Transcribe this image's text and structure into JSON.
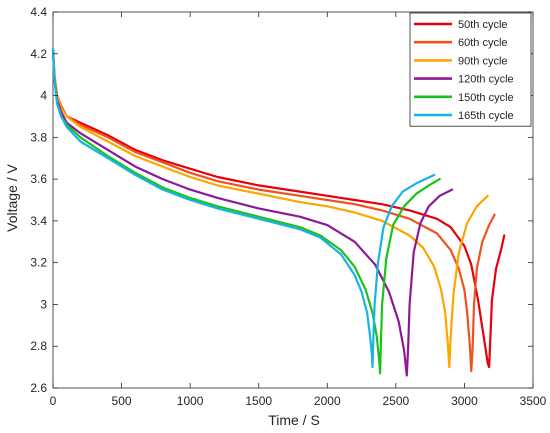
{
  "chart_data": {
    "type": "line",
    "title": "",
    "xlabel": "Time / S",
    "ylabel": "Voltage / V",
    "xlim": [
      0,
      3500
    ],
    "ylim": [
      2.6,
      4.4
    ],
    "xticks": [
      "0",
      "500",
      "1000",
      "1500",
      "2000",
      "2500",
      "3000",
      "3500"
    ],
    "yticks": [
      "2.6",
      "2.8",
      "3",
      "3.2",
      "3.4",
      "3.6",
      "3.8",
      "4",
      "4.2",
      "4.4"
    ],
    "legend_position": "top-right",
    "grid": false,
    "series": [
      {
        "name": "50th cycle",
        "color": "#e8000b",
        "x": [
          0,
          10,
          30,
          60,
          100,
          200,
          400,
          600,
          800,
          1000,
          1200,
          1500,
          1800,
          2000,
          2200,
          2400,
          2600,
          2800,
          2900,
          3000,
          3050,
          3100,
          3140,
          3170,
          3180,
          3190,
          3200,
          3230,
          3270,
          3290
        ],
        "y": [
          4.22,
          4.1,
          4.0,
          3.95,
          3.9,
          3.87,
          3.81,
          3.74,
          3.69,
          3.65,
          3.61,
          3.57,
          3.54,
          3.52,
          3.5,
          3.48,
          3.45,
          3.41,
          3.37,
          3.28,
          3.19,
          3.02,
          2.85,
          2.72,
          2.7,
          2.85,
          3.02,
          3.17,
          3.27,
          3.33
        ]
      },
      {
        "name": "60th cycle",
        "color": "#f0521e",
        "x": [
          0,
          10,
          30,
          60,
          100,
          200,
          400,
          600,
          800,
          1000,
          1200,
          1500,
          1800,
          2000,
          2200,
          2400,
          2600,
          2800,
          2900,
          2960,
          3000,
          3020,
          3040,
          3050,
          3060,
          3070,
          3090,
          3130,
          3180,
          3220
        ],
        "y": [
          4.22,
          4.1,
          4.0,
          3.95,
          3.9,
          3.86,
          3.8,
          3.73,
          3.68,
          3.63,
          3.59,
          3.55,
          3.52,
          3.5,
          3.48,
          3.45,
          3.41,
          3.34,
          3.26,
          3.17,
          3.07,
          2.96,
          2.8,
          2.68,
          2.8,
          3.0,
          3.17,
          3.3,
          3.38,
          3.43
        ]
      },
      {
        "name": "90th cycle",
        "color": "#ffa500",
        "x": [
          0,
          10,
          30,
          60,
          100,
          200,
          400,
          600,
          800,
          1000,
          1200,
          1500,
          1800,
          2000,
          2200,
          2400,
          2600,
          2700,
          2780,
          2830,
          2860,
          2880,
          2890,
          2900,
          2920,
          2960,
          3020,
          3090,
          3170
        ],
        "y": [
          4.22,
          4.1,
          4.0,
          3.94,
          3.9,
          3.85,
          3.78,
          3.71,
          3.66,
          3.61,
          3.57,
          3.53,
          3.49,
          3.47,
          3.44,
          3.4,
          3.33,
          3.27,
          3.18,
          3.07,
          2.96,
          2.8,
          2.7,
          2.85,
          3.05,
          3.25,
          3.39,
          3.47,
          3.52
        ]
      },
      {
        "name": "120th cycle",
        "color": "#8b1a99",
        "x": [
          0,
          10,
          30,
          60,
          100,
          200,
          400,
          600,
          800,
          1000,
          1200,
          1500,
          1800,
          2000,
          2200,
          2350,
          2450,
          2520,
          2560,
          2580,
          2590,
          2600,
          2630,
          2680,
          2740,
          2820,
          2910
        ],
        "y": [
          4.22,
          4.08,
          3.98,
          3.92,
          3.87,
          3.82,
          3.74,
          3.66,
          3.6,
          3.55,
          3.51,
          3.46,
          3.42,
          3.38,
          3.3,
          3.19,
          3.06,
          2.92,
          2.78,
          2.66,
          2.8,
          3.0,
          3.25,
          3.39,
          3.47,
          3.52,
          3.55
        ]
      },
      {
        "name": "150th cycle",
        "color": "#1bc21b",
        "x": [
          0,
          10,
          30,
          60,
          100,
          200,
          400,
          600,
          800,
          1000,
          1200,
          1500,
          1800,
          1950,
          2100,
          2200,
          2280,
          2330,
          2360,
          2380,
          2385,
          2390,
          2400,
          2430,
          2480,
          2560,
          2650,
          2740,
          2820
        ],
        "y": [
          4.22,
          4.08,
          3.97,
          3.9,
          3.86,
          3.8,
          3.71,
          3.63,
          3.56,
          3.51,
          3.47,
          3.42,
          3.37,
          3.33,
          3.26,
          3.18,
          3.07,
          2.96,
          2.85,
          2.72,
          2.67,
          2.8,
          3.0,
          3.22,
          3.38,
          3.47,
          3.53,
          3.57,
          3.6
        ]
      },
      {
        "name": "165th cycle",
        "color": "#17b3e6",
        "x": [
          0,
          10,
          30,
          60,
          100,
          200,
          400,
          600,
          800,
          1000,
          1200,
          1500,
          1800,
          1950,
          2100,
          2200,
          2250,
          2290,
          2310,
          2325,
          2330,
          2335,
          2345,
          2370,
          2410,
          2470,
          2550,
          2650,
          2780
        ],
        "y": [
          4.22,
          4.08,
          3.96,
          3.9,
          3.85,
          3.78,
          3.7,
          3.62,
          3.55,
          3.5,
          3.46,
          3.41,
          3.36,
          3.32,
          3.24,
          3.14,
          3.06,
          2.96,
          2.86,
          2.76,
          2.7,
          2.82,
          3.0,
          3.2,
          3.37,
          3.47,
          3.54,
          3.58,
          3.62
        ]
      }
    ]
  }
}
